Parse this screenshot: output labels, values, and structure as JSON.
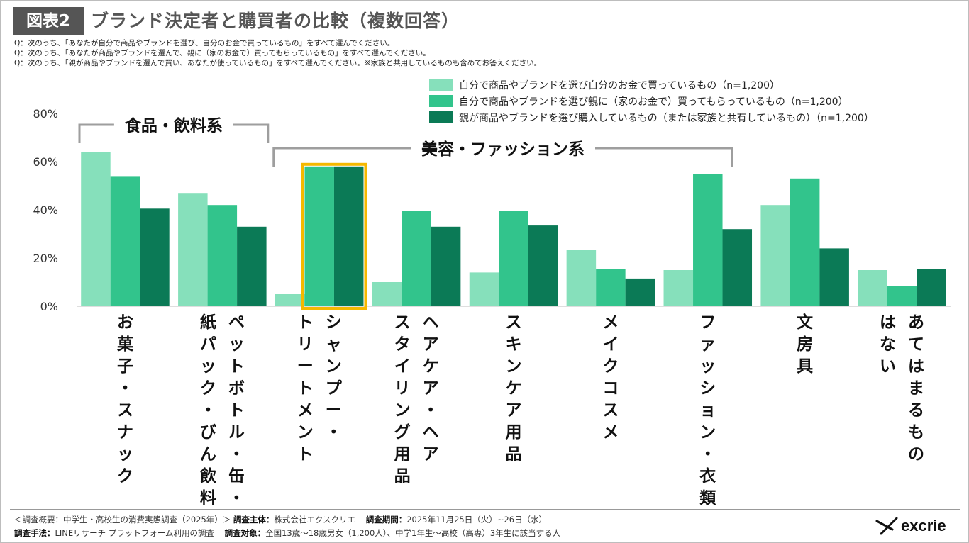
{
  "header": {
    "figure_label": "図表2",
    "title": "ブランド決定者と購買者の比較（複数回答）"
  },
  "questions": [
    "Q：次のうち、「あなたが自分で商品やブランドを選び、自分のお金で買っているもの」をすべて選んでください。",
    "Q：次のうち、「あなたが商品やブランドを選んで、親に（家のお金で）買ってもらっているもの」をすべて選んでください。",
    "Q：次のうち、「親が商品やブランドを選んで買い、あなたが使っているもの」をすべて選んでください。※家族と共用しているものも含めてお答えください。"
  ],
  "colors": {
    "series1": "#86e0bb",
    "series2": "#32c48c",
    "series3": "#0b7a56",
    "highlight": "#f5b800",
    "bracket": "#9e9e9e"
  },
  "chart_data": {
    "type": "bar",
    "categories": [
      "お菓子・スナック",
      "ペットボトル・缶・紙パック・びん飲料",
      "シャンプー・トリートメント",
      "ヘアケア・ヘアスタイリング用品",
      "スキンケア用品",
      "メイクコスメ",
      "ファッション・衣類",
      "文房具",
      "あてはまるものはない"
    ],
    "category_lines": [
      [
        "お菓子・スナック"
      ],
      [
        "ペットボトル・缶・",
        "紙パック・びん飲料"
      ],
      [
        "シャンプー・",
        "トリートメント"
      ],
      [
        "ヘアケア・ヘア",
        "スタイリング用品"
      ],
      [
        "スキンケア用品"
      ],
      [
        "メイクコスメ"
      ],
      [
        "ファッション・衣類"
      ],
      [
        "文房具"
      ],
      [
        "あてはまるもの",
        "はない"
      ]
    ],
    "series": [
      {
        "name": "自分で商品やブランドを選び自分のお金で買っているもの（n=1,200）",
        "values": [
          64,
          47,
          5,
          10,
          14,
          23.5,
          15,
          42,
          15
        ]
      },
      {
        "name": "自分で商品やブランドを選び親に（家のお金で）買ってもらっているもの（n=1,200）",
        "values": [
          54,
          42,
          58,
          39.5,
          39.5,
          15.5,
          55,
          53,
          8.5
        ]
      },
      {
        "name": "親が商品やブランドを選び購入しているもの（または家族と共有しているもの）（n=1,200）",
        "values": [
          40.5,
          33,
          58,
          33,
          33.5,
          11.5,
          32,
          24,
          15.5
        ]
      }
    ],
    "yticks": [
      "0%",
      "20%",
      "40%",
      "60%",
      "80%"
    ],
    "ylim": [
      0,
      80
    ],
    "grid": false,
    "legend": "top-right",
    "groups": [
      {
        "label": "食品・飲料系",
        "from_category": 0,
        "to_category": 1
      },
      {
        "label": "美容・ファッション系",
        "from_category": 2,
        "to_category": 6
      }
    ],
    "highlight": {
      "category": 2,
      "series": [
        1,
        2
      ]
    }
  },
  "footer": {
    "line1_prefix": "＜調査概要：中学生・高校生の消費実態調査（2025年）＞",
    "line1_sponsor_label": "調査主体：",
    "line1_sponsor": "株式会社エクスクリエ",
    "line1_period_label": "調査期間：",
    "line1_period": "2025年11月25日（火）~26日（水）",
    "line2_method_label": "調査手法：",
    "line2_method": "LINEリサーチ プラットフォーム利用の調査",
    "line2_target_label": "調査対象：",
    "line2_target": "全国13歳～18歳男女（1,200人）、中学1年生～高校（高専）3年生に該当する人"
  },
  "logo": {
    "text": "excrie",
    "icon": "excrie-logo-icon"
  }
}
